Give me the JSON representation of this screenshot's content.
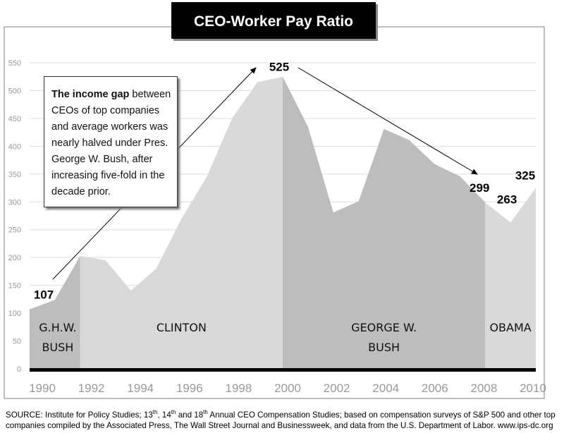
{
  "chart_data": {
    "type": "area",
    "title": "CEO-Worker Pay Ratio",
    "x": [
      1990,
      1991,
      1992,
      1993,
      1994,
      1995,
      1996,
      1997,
      1998,
      1999,
      2000,
      2001,
      2002,
      2003,
      2004,
      2005,
      2006,
      2007,
      2008,
      2009,
      2010
    ],
    "values": [
      107,
      124,
      203,
      195,
      141,
      180,
      270,
      345,
      450,
      515,
      525,
      435,
      281,
      301,
      431,
      411,
      368,
      346,
      299,
      263,
      325
    ],
    "xticks": [
      "1990",
      "1992",
      "1994",
      "1996",
      "1998",
      "2000",
      "2002",
      "2004",
      "2006",
      "2008",
      "2010"
    ],
    "yticks": [
      "0",
      "50",
      "100",
      "150",
      "200",
      "250",
      "300",
      "350",
      "400",
      "450",
      "500",
      "550"
    ],
    "ylim": [
      0,
      550
    ],
    "xlim": [
      1990,
      2010
    ],
    "grid": true,
    "eras": [
      {
        "label_line1": "G.H.W.",
        "label_line2": "BUSH",
        "start": 1990,
        "end": 1992,
        "color": "#bdbdbd"
      },
      {
        "label_line1": "CLINTON",
        "label_line2": "",
        "start": 1992,
        "end": 2000,
        "color": "#d9d9d9"
      },
      {
        "label_line1": "GEORGE W.",
        "label_line2": "BUSH",
        "start": 2000,
        "end": 2008,
        "color": "#bdbdbd"
      },
      {
        "label_line1": "OBAMA",
        "label_line2": "",
        "start": 2008,
        "end": 2010,
        "color": "#d9d9d9"
      }
    ],
    "data_labels": [
      {
        "year": 1990,
        "text": "107"
      },
      {
        "year": 2000,
        "text": "525"
      },
      {
        "year": 2008,
        "text": "299"
      },
      {
        "year": 2009,
        "text": "263"
      },
      {
        "year": 2010,
        "text": "325"
      }
    ],
    "annotation": {
      "bold": "The income gap",
      "text": " between CEOs of top companies and average workers was nearly halved under Pres. George W. Bush, after increasing five-fold in the decade prior."
    }
  },
  "footer": {
    "line1_a": "SOURCE:  Institute for Policy Studies; 13",
    "sup1": "th",
    "line1_b": ", 14",
    "sup2": "th",
    "line1_c": " and 18",
    "sup3": "th",
    "line1_d": " Annual CEO Compensation Studies; based on compensation surveys of S&P 500 and other top",
    "line2": "companies compiled by the Associated Press, The Wall Street Journal and Businessweek, and data from the U.S. Department of Labor. www.ips-dc.org"
  }
}
